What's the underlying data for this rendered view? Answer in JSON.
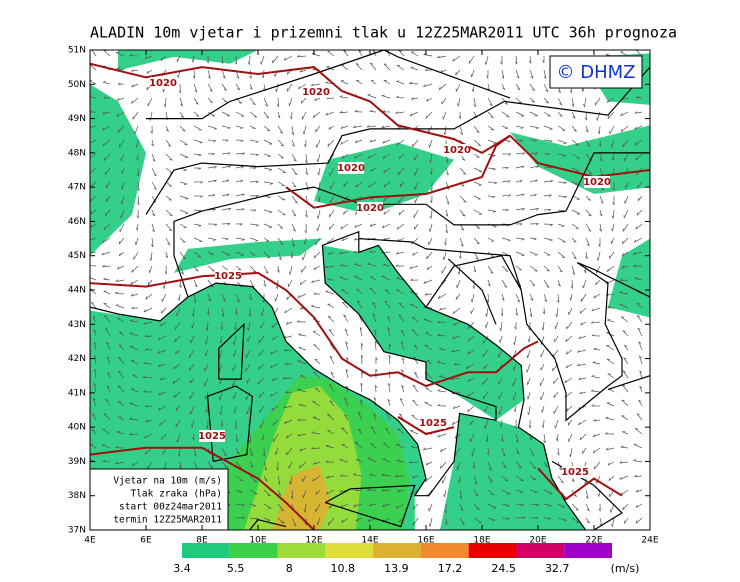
{
  "header": {
    "title": "ALADIN 10m vjetar i prizemni tlak u 12Z25MAR2011 UTC 36h prognoza"
  },
  "copyright": "© DHMZ",
  "axes": {
    "lat_labels": [
      "37N",
      "38N",
      "39N",
      "40N",
      "41N",
      "42N",
      "43N",
      "44N",
      "45N",
      "46N",
      "47N",
      "48N",
      "49N",
      "50N",
      "51N"
    ],
    "lon_labels": [
      "4E",
      "6E",
      "8E",
      "10E",
      "12E",
      "14E",
      "16E",
      "18E",
      "20E",
      "22E",
      "24E"
    ]
  },
  "isobar_labels": [
    1020,
    1020,
    1020,
    1020,
    1020,
    1020,
    1025,
    1025,
    1025,
    1025
  ],
  "info_box": [
    "Vjetar na 10m (m/s)",
    "Tlak zraka (hPa)",
    "start 00z24mar2011",
    "termin 12Z25MAR2011"
  ],
  "legend": {
    "labels": [
      3.4,
      5.5,
      8,
      10.8,
      13.9,
      17.2,
      24.5,
      32.7
    ],
    "unit": "(m/s)",
    "colors": [
      "#1ecb7c",
      "#3ccf4a",
      "#9edc3a",
      "#dede3a",
      "#dcb030",
      "#f08a2c",
      "#e60000",
      "#d00068",
      "#a000c8"
    ]
  }
}
